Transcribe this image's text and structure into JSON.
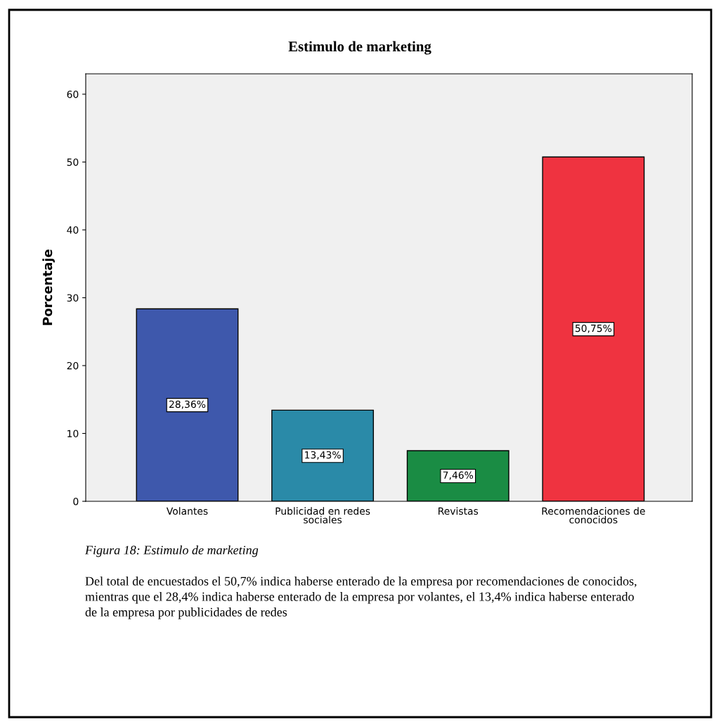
{
  "chart_data": {
    "type": "bar",
    "title": "Estimulo de marketing",
    "ylabel": "Porcentaje",
    "categories": [
      "Volantes",
      "Publicidad en redes\nsociales",
      "Revistas",
      "Recomendaciones de\nconocidos"
    ],
    "values": [
      28.36,
      13.43,
      7.46,
      50.75
    ],
    "colors": [
      "#3e58ac",
      "#2a8aa8",
      "#1a8c44",
      "#ef3340"
    ],
    "value_labels": [
      "28,36%",
      "13,43%",
      "7,46%",
      "50,75%"
    ],
    "ylim": [
      0,
      63
    ],
    "yticks": [
      0,
      10,
      20,
      30,
      40,
      50,
      60
    ],
    "grid": false,
    "annotations": [
      "Figura 18: Estimulo de marketing",
      "Del total de encuestados el 50,7% indica haberse enterado de la empresa por recomendaciones de conocidos, mientras que el 28,4% indica haberse enterado de la empresa por volantes, el 13,4% indica haberse enterado de la empresa por publicidades de redes"
    ]
  }
}
